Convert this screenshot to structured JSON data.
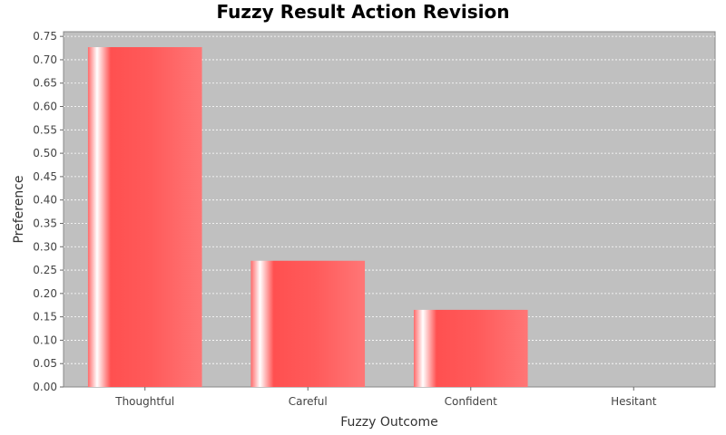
{
  "chart_data": {
    "type": "bar",
    "title": "Fuzzy Result Action Revision",
    "xlabel": "Fuzzy Outcome",
    "ylabel": "Preference",
    "categories": [
      "Thoughtful",
      "Careful",
      "Confident",
      "Hesitant"
    ],
    "values": [
      0.727,
      0.27,
      0.165,
      0.0
    ],
    "ylim": [
      0,
      0.76
    ],
    "yticks": [
      "0.00",
      "0.05",
      "0.10",
      "0.15",
      "0.20",
      "0.25",
      "0.30",
      "0.35",
      "0.40",
      "0.45",
      "0.50",
      "0.55",
      "0.60",
      "0.65",
      "0.70",
      "0.75"
    ],
    "grid": true,
    "legend": "none",
    "colors": {
      "bar": "#ff5555",
      "bar_highlight": "#ffffff",
      "plot_background": "#c0c0c0",
      "gridline": "#ffffff"
    }
  }
}
